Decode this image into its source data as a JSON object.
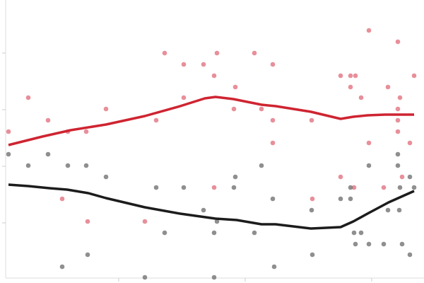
{
  "chart_data": {
    "type": "scatter",
    "xlim": [
      0,
      600
    ],
    "ylim": [
      0,
      395
    ],
    "xticks": [
      168,
      347,
      526
    ],
    "yticks": [
      80,
      160,
      240,
      320
    ],
    "series": [
      {
        "type": "scatter",
        "color": "#e06a78",
        "x": [
          12,
          40,
          68,
          96,
          122,
          124,
          150,
          88,
          205,
          221,
          233,
          260,
          260,
          288,
          303,
          307,
          303,
          333,
          331,
          360,
          370,
          386,
          386,
          386,
          441,
          442,
          482,
          482,
          496,
          496,
          503,
          501,
          511,
          522,
          522,
          543,
          549,
          563,
          563,
          563,
          563,
          566,
          569,
          580,
          586
        ],
        "values": [
          209,
          257,
          225,
          209,
          209,
          82,
          241,
          114,
          82,
          225,
          320,
          304,
          257,
          304,
          288,
          320,
          130,
          272,
          241,
          320,
          241,
          304,
          225,
          193,
          225,
          114,
          288,
          145,
          288,
          272,
          288,
          130,
          257,
          352,
          193,
          130,
          272,
          336,
          209,
          225,
          241,
          257,
          145,
          193,
          288
        ]
      },
      {
        "type": "scatter",
        "color": "#6a6a6a",
        "x": [
          12,
          40,
          68,
          88,
          96,
          122,
          124,
          150,
          205,
          221,
          233,
          260,
          288,
          303,
          307,
          303,
          333,
          331,
          360,
          370,
          386,
          388,
          441,
          442,
          482,
          496,
          496,
          501,
          503,
          511,
          522,
          522,
          543,
          549,
          563,
          563,
          565,
          566,
          569,
          580,
          580,
          586
        ],
        "values": [
          177,
          161,
          177,
          18,
          161,
          161,
          35,
          145,
          3,
          130,
          66,
          130,
          98,
          66,
          82,
          3,
          145,
          130,
          66,
          161,
          114,
          18,
          98,
          35,
          114,
          130,
          114,
          66,
          50,
          66,
          50,
          161,
          50,
          98,
          177,
          161,
          98,
          130,
          50,
          145,
          35,
          130
        ]
      },
      {
        "type": "line",
        "color": "#cf2431",
        "x": [
          12,
          60,
          100,
          150,
          205,
          255,
          290,
          305,
          330,
          370,
          390,
          440,
          482,
          500,
          520,
          545,
          586
        ],
        "values": [
          190,
          202,
          211,
          219,
          231,
          245,
          256,
          258,
          255,
          247,
          245,
          237,
          227,
          230,
          232,
          233,
          233
        ]
      },
      {
        "type": "line",
        "color": "#1c1c1c",
        "x": [
          12,
          40,
          70,
          95,
          125,
          150,
          205,
          255,
          305,
          335,
          370,
          390,
          440,
          482,
          500,
          520,
          550,
          586
        ],
        "values": [
          134,
          132,
          129,
          127,
          122,
          115,
          102,
          93,
          86,
          84,
          78,
          78,
          72,
          74,
          82,
          93,
          109,
          125
        ]
      }
    ]
  }
}
